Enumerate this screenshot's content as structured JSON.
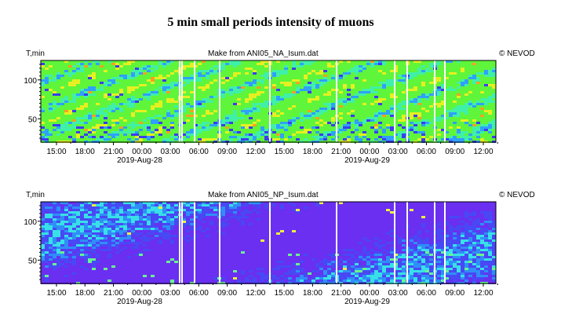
{
  "title": "5 min small periods intensity of muons",
  "chart_data": [
    {
      "type": "heatmap",
      "source_label": "Make from ANI05_NA_Isum.dat",
      "ylabel": "T,min",
      "copyright": "© NEVOD",
      "ylim": [
        20,
        125
      ],
      "yticks": [
        50,
        100
      ],
      "x_tick_labels": [
        "15:00",
        "18:00",
        "21:00",
        "00:00",
        "03:00",
        "06:00",
        "09:00",
        "12:00",
        "15:00",
        "18:00",
        "21:00",
        "00:00",
        "03:00",
        "06:00",
        "09:00",
        "12:00"
      ],
      "date_labels": [
        "2019-Aug-28",
        "2019-Aug-29"
      ],
      "palette": [
        "#2fa0ff",
        "#3ff0a8",
        "#5ff53a",
        "#e6f020",
        "#f7a020",
        "#3c3cf0"
      ]
    },
    {
      "type": "heatmap",
      "source_label": "Make from ANI05_NP_Isum.dat",
      "ylabel": "T,min",
      "copyright": "© NEVOD",
      "ylim": [
        20,
        125
      ],
      "yticks": [
        50,
        100
      ],
      "x_tick_labels": [
        "15:00",
        "18:00",
        "21:00",
        "00:00",
        "03:00",
        "06:00",
        "09:00",
        "12:00",
        "15:00",
        "18:00",
        "21:00",
        "00:00",
        "03:00",
        "06:00",
        "09:00",
        "12:00"
      ],
      "date_labels": [
        "2019-Aug-28",
        "2019-Aug-29"
      ],
      "palette": [
        "#6a2ff0",
        "#4848f5",
        "#2f8ef8",
        "#38e0e8",
        "#6af590",
        "#f0f040"
      ]
    }
  ]
}
